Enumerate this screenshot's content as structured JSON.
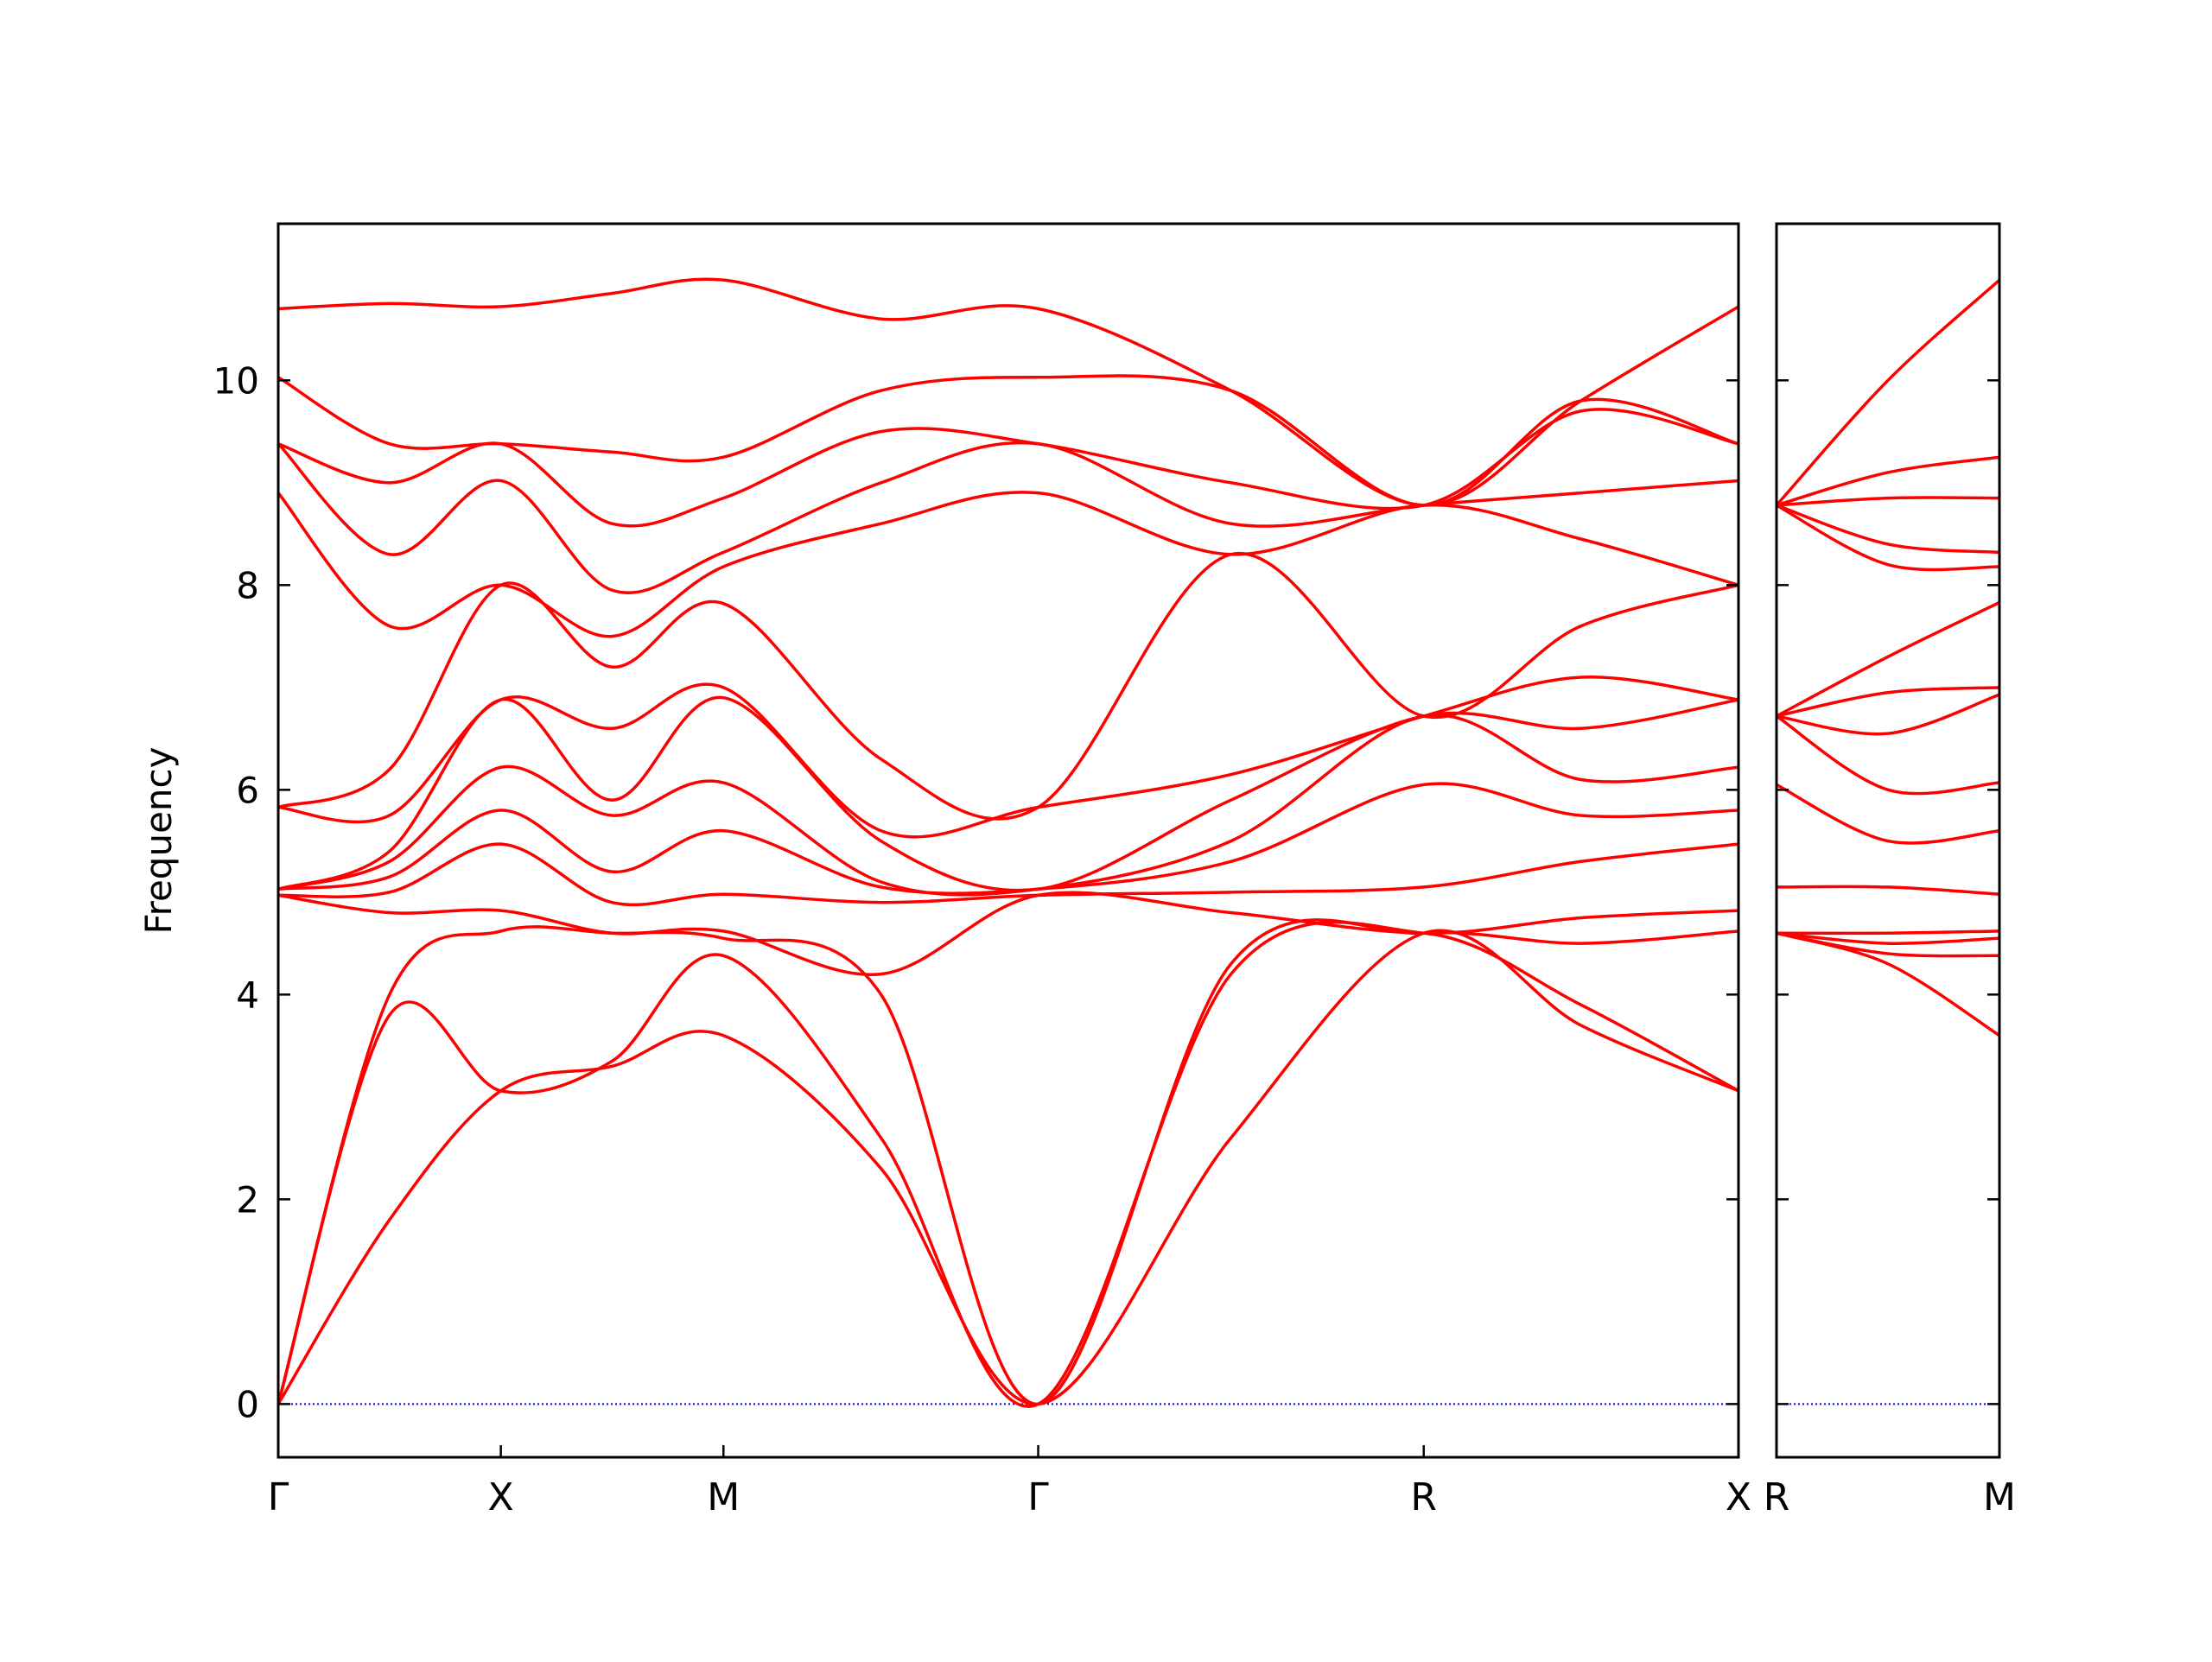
{
  "chart_data": {
    "type": "line",
    "title": "",
    "ylabel": "Frequency",
    "xlabel": "",
    "ylim": [
      -0.52,
      11.53
    ],
    "yticks": [
      0,
      2,
      4,
      6,
      8,
      10
    ],
    "zero_line_color": "#0000ff",
    "band_color": "#ff0000",
    "grid": false,
    "panels": [
      {
        "xlim": [
          0,
          3.28
        ],
        "labels": [
          {
            "x": 0,
            "text": "Γ"
          },
          {
            "x": 0.5,
            "text": "X"
          },
          {
            "x": 1.0,
            "text": "M"
          },
          {
            "x": 1.707,
            "text": "Γ"
          },
          {
            "x": 2.573,
            "text": "R"
          },
          {
            "x": 3.28,
            "text": "X"
          }
        ],
        "knots": [
          {
            "x": 0,
            "bands": [
              0,
              0,
              0,
              4.97,
              4.97,
              5.03,
              5.03,
              5.03,
              5.83,
              5.83,
              8.9,
              9.38,
              9.38,
              10.03,
              10.7
            ]
          },
          {
            "x": 0.25,
            "bands": [
              1.8,
              3.8,
              4.0,
              4.8,
              5.0,
              5.15,
              5.3,
              5.4,
              5.75,
              6.2,
              7.6,
              8.3,
              9.0,
              9.38,
              10.75
            ]
          },
          {
            "x": 0.5,
            "bands": [
              3.06,
              3.06,
              4.62,
              4.82,
              5.47,
              5.8,
              6.22,
              6.88,
              6.88,
              8.0,
              8.0,
              9.02,
              9.38,
              9.38,
              10.72
            ]
          },
          {
            "x": 0.75,
            "bands": [
              3.3,
              3.35,
              4.6,
              4.6,
              4.9,
              5.2,
              5.75,
              5.9,
              6.6,
              7.2,
              7.5,
              7.95,
              8.6,
              9.3,
              10.85
            ]
          },
          {
            "x": 1.0,
            "bands": [
              3.6,
              4.38,
              4.55,
              4.62,
              4.98,
              5.6,
              6.07,
              6.9,
              7.0,
              7.82,
              8.18,
              8.32,
              8.85,
              9.25,
              10.98
            ]
          },
          {
            "x": 1.354,
            "bands": [
              2.3,
              2.6,
              4.0,
              4.2,
              4.9,
              5.05,
              5.1,
              5.5,
              5.6,
              6.3,
              8.6,
              9.0,
              9.5,
              9.9,
              10.6
            ]
          },
          {
            "x": 1.707,
            "bands": [
              0,
              0,
              0,
              4.97,
              4.97,
              5.03,
              5.03,
              5.03,
              5.83,
              5.83,
              8.9,
              9.38,
              9.38,
              10.03,
              10.7
            ]
          },
          {
            "x": 2.14,
            "bands": [
              2.6,
              4.2,
              4.3,
              4.8,
              5.0,
              5.3,
              5.5,
              5.9,
              6.15,
              8.3,
              8.3,
              8.6,
              9.0,
              9.9,
              9.9
            ]
          },
          {
            "x": 2.573,
            "bands": [
              4.6,
              4.6,
              4.6,
              4.6,
              5.05,
              6.05,
              6.72,
              6.72,
              6.72,
              6.72,
              8.78,
              8.78,
              8.78,
              8.78,
              8.78
            ]
          },
          {
            "x": 2.926,
            "bands": [
              3.7,
              3.9,
              4.5,
              4.75,
              5.3,
              5.75,
              6.1,
              6.6,
              7.1,
              7.6,
              8.45,
              8.9,
              9.7,
              9.8,
              9.8
            ]
          },
          {
            "x": 3.28,
            "bands": [
              3.06,
              3.06,
              4.62,
              4.82,
              5.47,
              5.8,
              6.22,
              6.88,
              6.88,
              8.0,
              8.0,
              9.02,
              9.38,
              9.38,
              10.72
            ]
          }
        ]
      },
      {
        "xlim": [
          0,
          0.5
        ],
        "labels": [
          {
            "x": 0,
            "text": "R"
          },
          {
            "x": 0.5,
            "text": "M"
          }
        ],
        "knots": [
          {
            "x": 0,
            "bands": [
              4.6,
              4.6,
              4.6,
              4.6,
              5.05,
              6.05,
              6.72,
              6.72,
              6.72,
              6.72,
              8.78,
              8.78,
              8.78,
              8.78,
              8.78
            ]
          },
          {
            "x": 0.25,
            "bands": [
              4.3,
              4.4,
              4.5,
              4.6,
              5.05,
              5.5,
              6.0,
              6.55,
              6.95,
              7.3,
              8.2,
              8.4,
              8.85,
              9.1,
              10.0
            ]
          },
          {
            "x": 0.5,
            "bands": [
              3.6,
              4.38,
              4.55,
              4.62,
              4.98,
              5.6,
              6.07,
              6.93,
              7.0,
              7.83,
              8.18,
              8.32,
              8.85,
              9.25,
              10.98
            ]
          }
        ]
      }
    ]
  }
}
